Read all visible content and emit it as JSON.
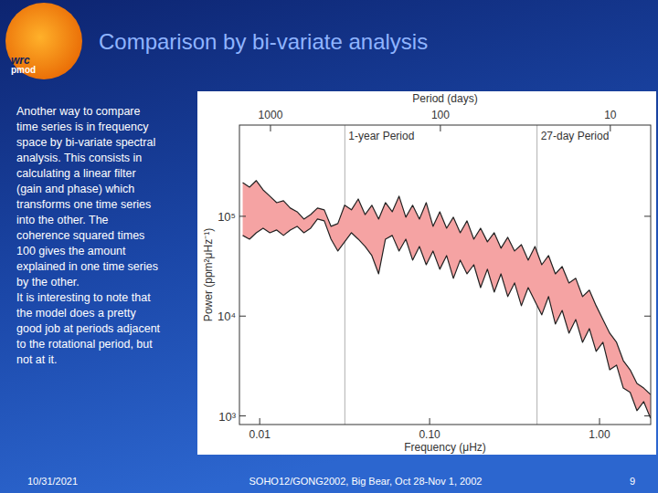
{
  "slide": {
    "title": "Comparison by bi-variate analysis",
    "logo": [
      "wrc",
      "pmod"
    ],
    "body": [
      "Another way to compare",
      "time series is in frequency",
      "space by bi-variate spectral",
      "analysis. This consists in",
      "calculating a linear filter",
      "(gain and phase) which",
      "transforms one time series",
      "into the other. The",
      "coherence squared times",
      "100 gives the amount",
      "explained in one time series",
      "by the other.",
      "It is interesting to note that",
      "the model does a pretty",
      "good job at periods adjacent",
      "to the rotational period, but",
      "not at it."
    ],
    "footer_left": "10/31/2021",
    "footer_center": "SOHO12/GONG2002, Big Bear, Oct 28-Nov 1, 2002",
    "footer_right": "9"
  },
  "chart_data": {
    "type": "band",
    "color": "#f5a3a3",
    "log": true,
    "grid": false,
    "x_label": "Frequency (μHz)",
    "y_label": "Power (ppm²μHz⁻¹)",
    "x2_label": "Period (days)",
    "xlim": [
      0.0076,
      2.0
    ],
    "xticks": [
      0.01,
      {
        "value": 0.1,
        "label": "0.10"
      },
      {
        "value": 1,
        "label": "1.00"
      }
    ],
    "x2lim": [
      1523,
      5.787
    ],
    "x2ticks": [
      1000,
      100,
      10
    ],
    "ylim": [
      820,
      820000
    ],
    "yticks": [
      {
        "value": 1000,
        "label": "10³"
      },
      {
        "value": 10000,
        "label": "10⁴"
      },
      {
        "value": 100000,
        "label": "10⁵"
      }
    ],
    "annotations": [
      {
        "text": "1-year Period",
        "x": 0.0317
      },
      {
        "text": "27-day Period",
        "x": 0.4287
      }
    ],
    "x": [
      0.007943,
      0.00871,
      0.00955,
      0.01047,
      0.01148,
      0.01259,
      0.0138,
      0.01514,
      0.0166,
      0.0182,
      0.01995,
      0.02188,
      0.02399,
      0.0263,
      0.02884,
      0.03162,
      0.03467,
      0.03802,
      0.04169,
      0.04571,
      0.05012,
      0.05495,
      0.06026,
      0.06607,
      0.07244,
      0.07943,
      0.0871,
      0.0955,
      0.1047,
      0.1148,
      0.1259,
      0.138,
      0.1514,
      0.166,
      0.182,
      0.1995,
      0.2188,
      0.2399,
      0.263,
      0.2884,
      0.3162,
      0.3467,
      0.3802,
      0.4169,
      0.4571,
      0.5012,
      0.5495,
      0.6026,
      0.6607,
      0.7244,
      0.7943,
      0.871,
      0.955,
      1.047,
      1.148,
      1.259,
      1.38,
      1.514,
      1.66,
      1.82,
      1.995
    ],
    "series": [
      {
        "color": "#222222",
        "values": [
          218000,
          196000,
          228000,
          184000,
          159000,
          137000,
          143000,
          121000,
          111000,
          93900,
          104000,
          121000,
          116000,
          79300,
          84500,
          129000,
          116000,
          149000,
          104000,
          129000,
          93900,
          137000,
          111000,
          159000,
          97900,
          129000,
          93900,
          137000,
          79300,
          111000,
          76000,
          97900,
          68400,
          90000,
          59000,
          76000,
          55500,
          68400,
          47900,
          61600,
          44900,
          52000,
          36400,
          49900,
          32700,
          40400,
          26500,
          31400,
          21500,
          23900,
          15700,
          18200,
          12700,
          9250,
          6750,
          5460,
          3580,
          2900,
          2120,
          1900,
          1640
        ]
      },
      {
        "color": "#222222",
        "values": [
          64300,
          59000,
          68400,
          76000,
          68400,
          72900,
          64300,
          72900,
          79300,
          68400,
          76000,
          93900,
          90000,
          59000,
          44900,
          55500,
          68400,
          59000,
          49900,
          40400,
          26500,
          59000,
          64300,
          44900,
          59000,
          36400,
          49900,
          32700,
          44900,
          29500,
          40400,
          23900,
          36400,
          26500,
          32700,
          19300,
          29500,
          17400,
          26500,
          15700,
          21500,
          12700,
          19300,
          14100,
          10300,
          15700,
          8330,
          11400,
          6750,
          9250,
          5460,
          7490,
          4430,
          5460,
          2900,
          3230,
          1900,
          1720,
          1130,
          1390,
          950
        ]
      }
    ]
  }
}
